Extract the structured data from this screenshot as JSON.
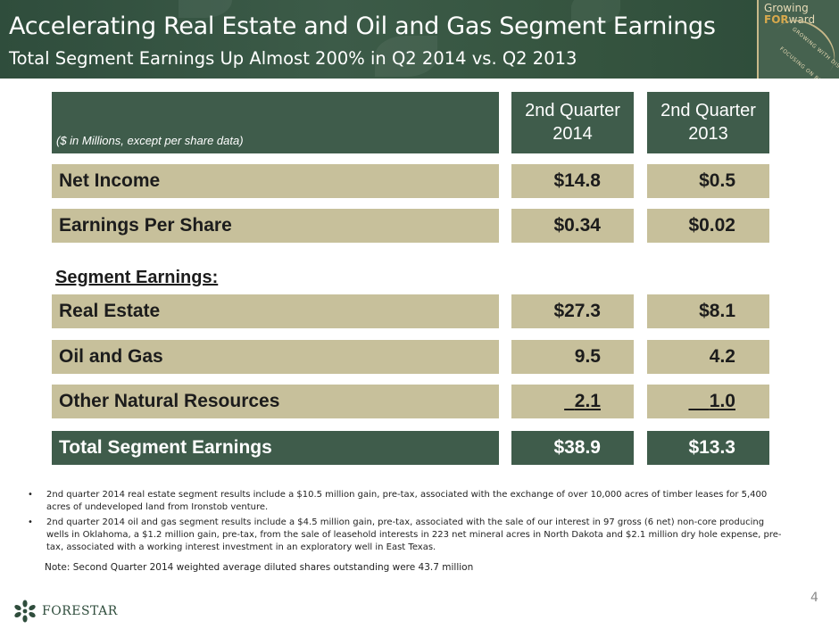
{
  "header": {
    "title": "Accelerating Real Estate and Oil and Gas Segment Earnings",
    "subtitle": "Total Segment Earnings Up Almost 200% in Q2 2014 vs. Q2 2013"
  },
  "logo": {
    "line1": "Growing",
    "line2_prefix": "",
    "line2_bold": "FOR",
    "line2_suffix": "ward",
    "tag1": "GROWING WITH DISCIPLINE",
    "tag2": "FOCUSING ON RETURNS"
  },
  "table": {
    "units_note": "($ in Millions, except per share data)",
    "col1_line1": "2nd Quarter",
    "col1_line2": "2014",
    "col2_line1": "2nd Quarter",
    "col2_line2": "2013",
    "net_income": {
      "label": "Net Income",
      "v2014": "$14.8",
      "v2013": "$0.5"
    },
    "eps": {
      "label": "Earnings Per Share",
      "v2014": "$0.34",
      "v2013": "$0.02"
    },
    "segment_heading": "Segment Earnings:",
    "real_estate": {
      "label": "Real Estate",
      "v2014": "$27.3",
      "v2013": "$8.1"
    },
    "oil_gas": {
      "label": "Oil and Gas",
      "v2014": "9.5",
      "v2013": "4.2"
    },
    "other_nr": {
      "label": "Other Natural Resources",
      "v2014": "2.1",
      "v2013": "1.0"
    },
    "total": {
      "label": "Total Segment Earnings",
      "v2014": "$38.9",
      "v2013": "$13.3"
    }
  },
  "notes": [
    "2nd quarter 2014 real estate segment results include a $10.5 million gain, pre-tax, associated with the exchange of over 10,000 acres of timber leases for 5,400 acres of undeveloped land from Ironstob venture.",
    "2nd quarter 2014 oil and gas segment results include a $4.5 million gain, pre-tax, associated with the sale of our interest in 97 gross (6 net) non-core producing wells in Oklahoma, a $1.2 million gain, pre-tax, from the sale of leasehold interests in 223 net mineral acres in North Dakota and $2.1 million dry hole expense, pre-tax, associated with a working interest investment in an exploratory well in East Texas."
  ],
  "bullet": "•",
  "note_shares": "Note:  Second Quarter 2014 weighted average diluted shares outstanding were 43.7 million",
  "page_number": "4",
  "brand": {
    "name": "FORESTAR"
  },
  "colors": {
    "header_green": "#3c5b48",
    "table_dark_green": "#3f5c4b",
    "table_tan": "#c7c09b",
    "logo_gold": "#d8a94c"
  },
  "icons": {
    "brand_mark": "forestar-seed-icon"
  }
}
